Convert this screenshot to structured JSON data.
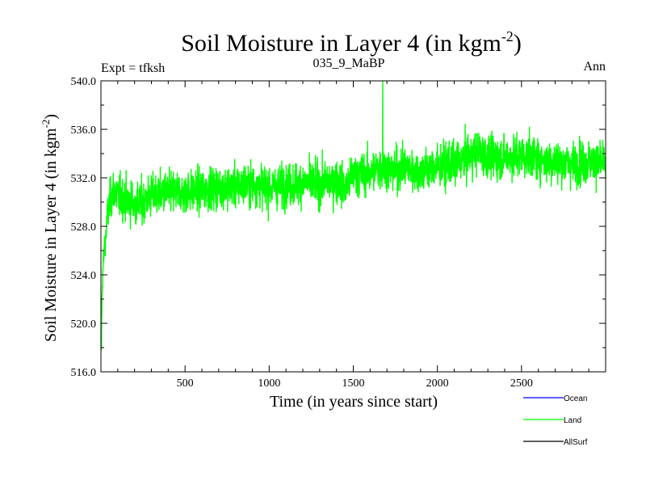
{
  "chart_data": {
    "type": "line",
    "title": "Soil Moisture in Layer 4 (in kgm",
    "title_sup": "-2",
    "title_close": ")",
    "subtitle_left": "Expt = tfksh",
    "subtitle_center": "035_9_MaBP",
    "subtitle_right": "Ann",
    "xlabel": "Time (in years since start)",
    "ylabel": "Soil Moisture in Layer 4 (in kgm",
    "ylabel_sup": "-2",
    "ylabel_close": ")",
    "xlim": [
      0,
      3000
    ],
    "ylim": [
      516,
      540
    ],
    "xticks": [
      500,
      1000,
      1500,
      2000,
      2500
    ],
    "xtick_labels": [
      "500",
      "1000",
      "1500",
      "2000",
      "2500"
    ],
    "yticks": [
      516,
      520,
      524,
      528,
      532,
      536,
      540
    ],
    "ytick_labels": [
      "516.0",
      "520.0",
      "524.0",
      "528.0",
      "532.0",
      "536.0",
      "540.0"
    ],
    "grid": false,
    "legend_position": "bottom-right",
    "legend": [
      {
        "name": "Ocean",
        "color": "#0000ff"
      },
      {
        "name": "Land",
        "color": "#00ff00"
      },
      {
        "name": "AllSurf",
        "color": "#000000"
      }
    ],
    "series": [
      {
        "name": "Land",
        "color": "#00ff00",
        "x": [
          0,
          10,
          20,
          40,
          60,
          80,
          100,
          150,
          200,
          250,
          300,
          400,
          500,
          600,
          700,
          800,
          900,
          1000,
          1100,
          1200,
          1300,
          1400,
          1450,
          1500,
          1600,
          1680,
          1700,
          1800,
          1900,
          1950,
          2000,
          2100,
          2200,
          2250,
          2300,
          2400,
          2500,
          2600,
          2650,
          2700,
          2800,
          2900,
          3000
        ],
        "y": [
          518.0,
          524.0,
          526.0,
          529.0,
          530.5,
          531.0,
          530.5,
          530.2,
          529.8,
          530.0,
          530.5,
          530.8,
          530.8,
          531.0,
          531.2,
          531.3,
          531.5,
          531.2,
          531.4,
          531.6,
          531.5,
          531.8,
          531.2,
          532.2,
          532.4,
          533.0,
          532.6,
          532.8,
          532.5,
          532.7,
          532.9,
          533.1,
          533.9,
          534.2,
          533.6,
          533.7,
          533.8,
          533.6,
          533.4,
          533.3,
          533.2,
          533.3,
          533.2
        ],
        "variability": 2.0,
        "min_observed": 517.8,
        "max_observed": 540.0
      }
    ]
  }
}
